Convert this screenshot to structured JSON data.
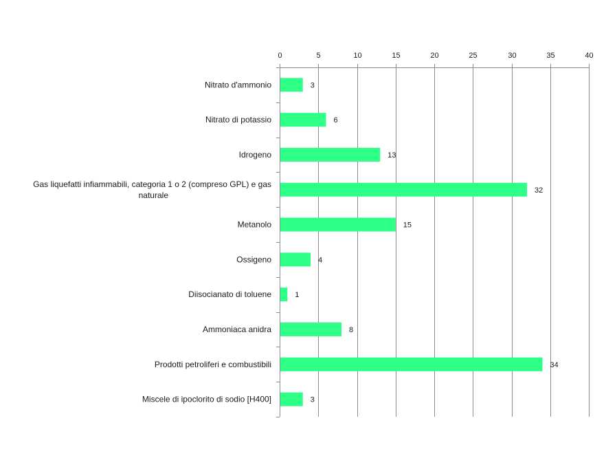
{
  "chart_data": {
    "type": "bar",
    "orientation": "horizontal",
    "x_axis_position": "top",
    "grid": true,
    "legend": "none",
    "xlim": [
      0,
      40
    ],
    "x_ticks": [
      0,
      5,
      10,
      15,
      20,
      25,
      30,
      35,
      40
    ],
    "title": "",
    "xlabel": "",
    "ylabel": "",
    "bar_color": "#2eff87",
    "categories": [
      "Nitrato d'ammonio",
      "Nitrato di potassio",
      "Idrogeno",
      "Gas liquefatti infiammabili, categoria 1 o 2 (compreso GPL) e gas naturale",
      "Metanolo",
      "Ossigeno",
      "Diisocianato di toluene",
      "Ammoniaca anidra",
      "Prodotti petroliferi e combustibili",
      "Miscele di ipoclorito di sodio [H400]"
    ],
    "category_label_lines": [
      [
        "Nitrato d'ammonio"
      ],
      [
        "Nitrato di potassio"
      ],
      [
        "Idrogeno"
      ],
      [
        "Gas liquefatti infiammabili, categoria 1 o 2 (compreso GPL) e gas",
        "naturale"
      ],
      [
        "Metanolo"
      ],
      [
        "Ossigeno"
      ],
      [
        "Diisocianato di toluene"
      ],
      [
        "Ammoniaca anidra"
      ],
      [
        "Prodotti petroliferi e combustibili"
      ],
      [
        "Miscele di ipoclorito di sodio [H400]"
      ]
    ],
    "values": [
      3,
      6,
      13,
      32,
      15,
      4,
      1,
      8,
      34,
      3
    ]
  }
}
